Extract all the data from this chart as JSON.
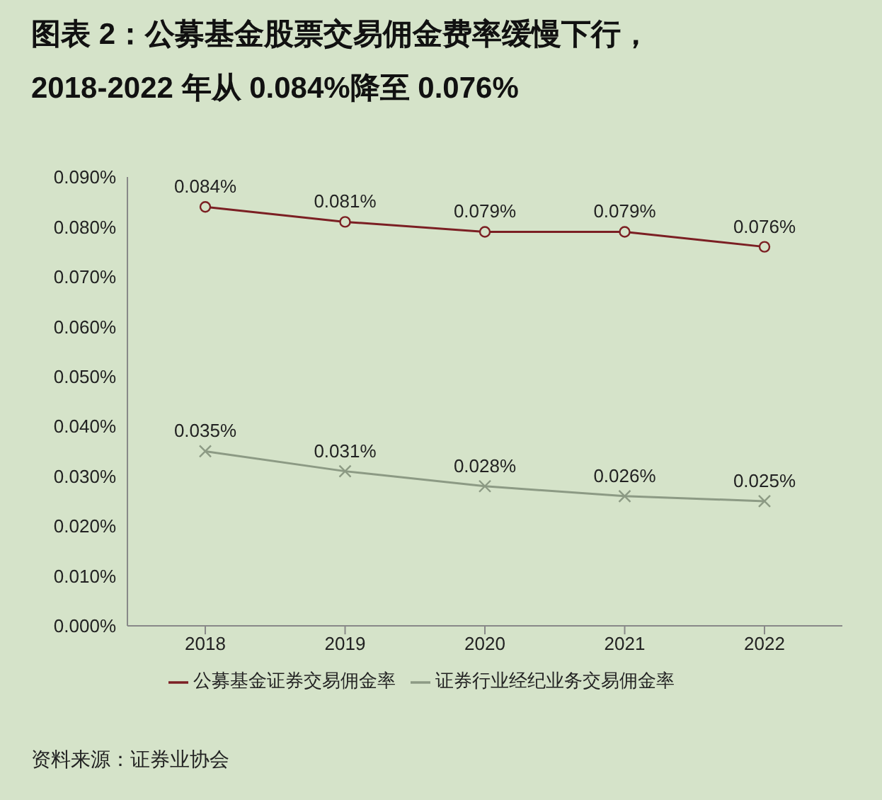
{
  "chart_data": {
    "type": "line",
    "title": "图表 2：公募基金股票交易佣金费率缓慢下行，",
    "subtitle": "2018-2022 年从 0.084%降至 0.076%",
    "categories": [
      "2018",
      "2019",
      "2020",
      "2021",
      "2022"
    ],
    "series": [
      {
        "name": "公募基金证券交易佣金率",
        "color": "#7b1f23",
        "marker": "circle",
        "values": [
          0.084,
          0.081,
          0.079,
          0.079,
          0.076
        ],
        "value_labels": [
          "0.084%",
          "0.081%",
          "0.079%",
          "0.079%",
          "0.076%"
        ]
      },
      {
        "name": "证券行业经纪业务交易佣金率",
        "color": "#8c9a84",
        "marker": "cross",
        "values": [
          0.035,
          0.031,
          0.028,
          0.026,
          0.025
        ],
        "value_labels": [
          "0.035%",
          "0.031%",
          "0.028%",
          "0.026%",
          "0.025%"
        ]
      }
    ],
    "ylim": [
      0,
      0.09
    ],
    "yticks": [
      {
        "value": 0,
        "label": "0.000%"
      },
      {
        "value": 0.01,
        "label": "0.010%"
      },
      {
        "value": 0.02,
        "label": "0.020%"
      },
      {
        "value": 0.03,
        "label": "0.030%"
      },
      {
        "value": 0.04,
        "label": "0.040%"
      },
      {
        "value": 0.05,
        "label": "0.050%"
      },
      {
        "value": 0.06,
        "label": "0.060%"
      },
      {
        "value": 0.07,
        "label": "0.070%"
      },
      {
        "value": 0.08,
        "label": "0.080%"
      },
      {
        "value": 0.09,
        "label": "0.090%"
      }
    ],
    "grid": false,
    "legend": "bottom",
    "line_style": "solid",
    "annotations": [
      "资料来源：证券业协会"
    ]
  }
}
